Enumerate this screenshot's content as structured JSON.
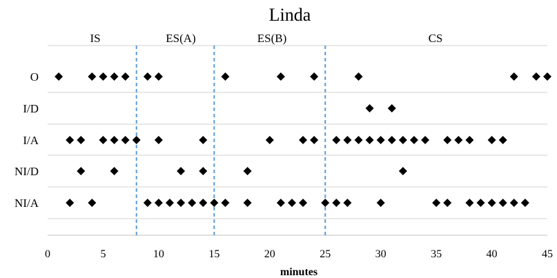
{
  "chart_data": {
    "type": "scatter",
    "title": "Linda",
    "xlabel": "minutes",
    "ylabel": "",
    "xlim": [
      0,
      45
    ],
    "x_ticks": [
      "0",
      "5",
      "10",
      "15",
      "20",
      "25",
      "30",
      "35",
      "40",
      "45"
    ],
    "categories": [
      "O",
      "I/D",
      "I/A",
      "NI/D",
      "NI/A"
    ],
    "phases": [
      {
        "label": "IS",
        "start": 0,
        "end": 8
      },
      {
        "label": "ES(A)",
        "start": 8,
        "end": 15
      },
      {
        "label": "ES(B)",
        "start": 15,
        "end": 25
      },
      {
        "label": "CS",
        "start": 25,
        "end": 45
      }
    ],
    "dividers": [
      8,
      15,
      25
    ],
    "grid": "horizontal",
    "divider_color": "#5b9bd5",
    "marker_color": "#000000",
    "series": [
      {
        "category": "O",
        "x": [
          1,
          4,
          5,
          6,
          7,
          9,
          10,
          16,
          21,
          24,
          28,
          42,
          44,
          45
        ]
      },
      {
        "category": "I/D",
        "x": [
          29,
          31
        ]
      },
      {
        "category": "I/A",
        "x": [
          2,
          3,
          5,
          6,
          7,
          8,
          10,
          14,
          20,
          23,
          24,
          26,
          27,
          28,
          29,
          30,
          31,
          32,
          33,
          34,
          36,
          37,
          38,
          40,
          41
        ]
      },
      {
        "category": "NI/D",
        "x": [
          3,
          6,
          12,
          14,
          18,
          32
        ]
      },
      {
        "category": "NI/A",
        "x": [
          2,
          4,
          9,
          10,
          11,
          12,
          13,
          14,
          15,
          16,
          18,
          21,
          22,
          23,
          25,
          26,
          27,
          30,
          35,
          36,
          38,
          39,
          40,
          41,
          42,
          43
        ]
      }
    ]
  }
}
